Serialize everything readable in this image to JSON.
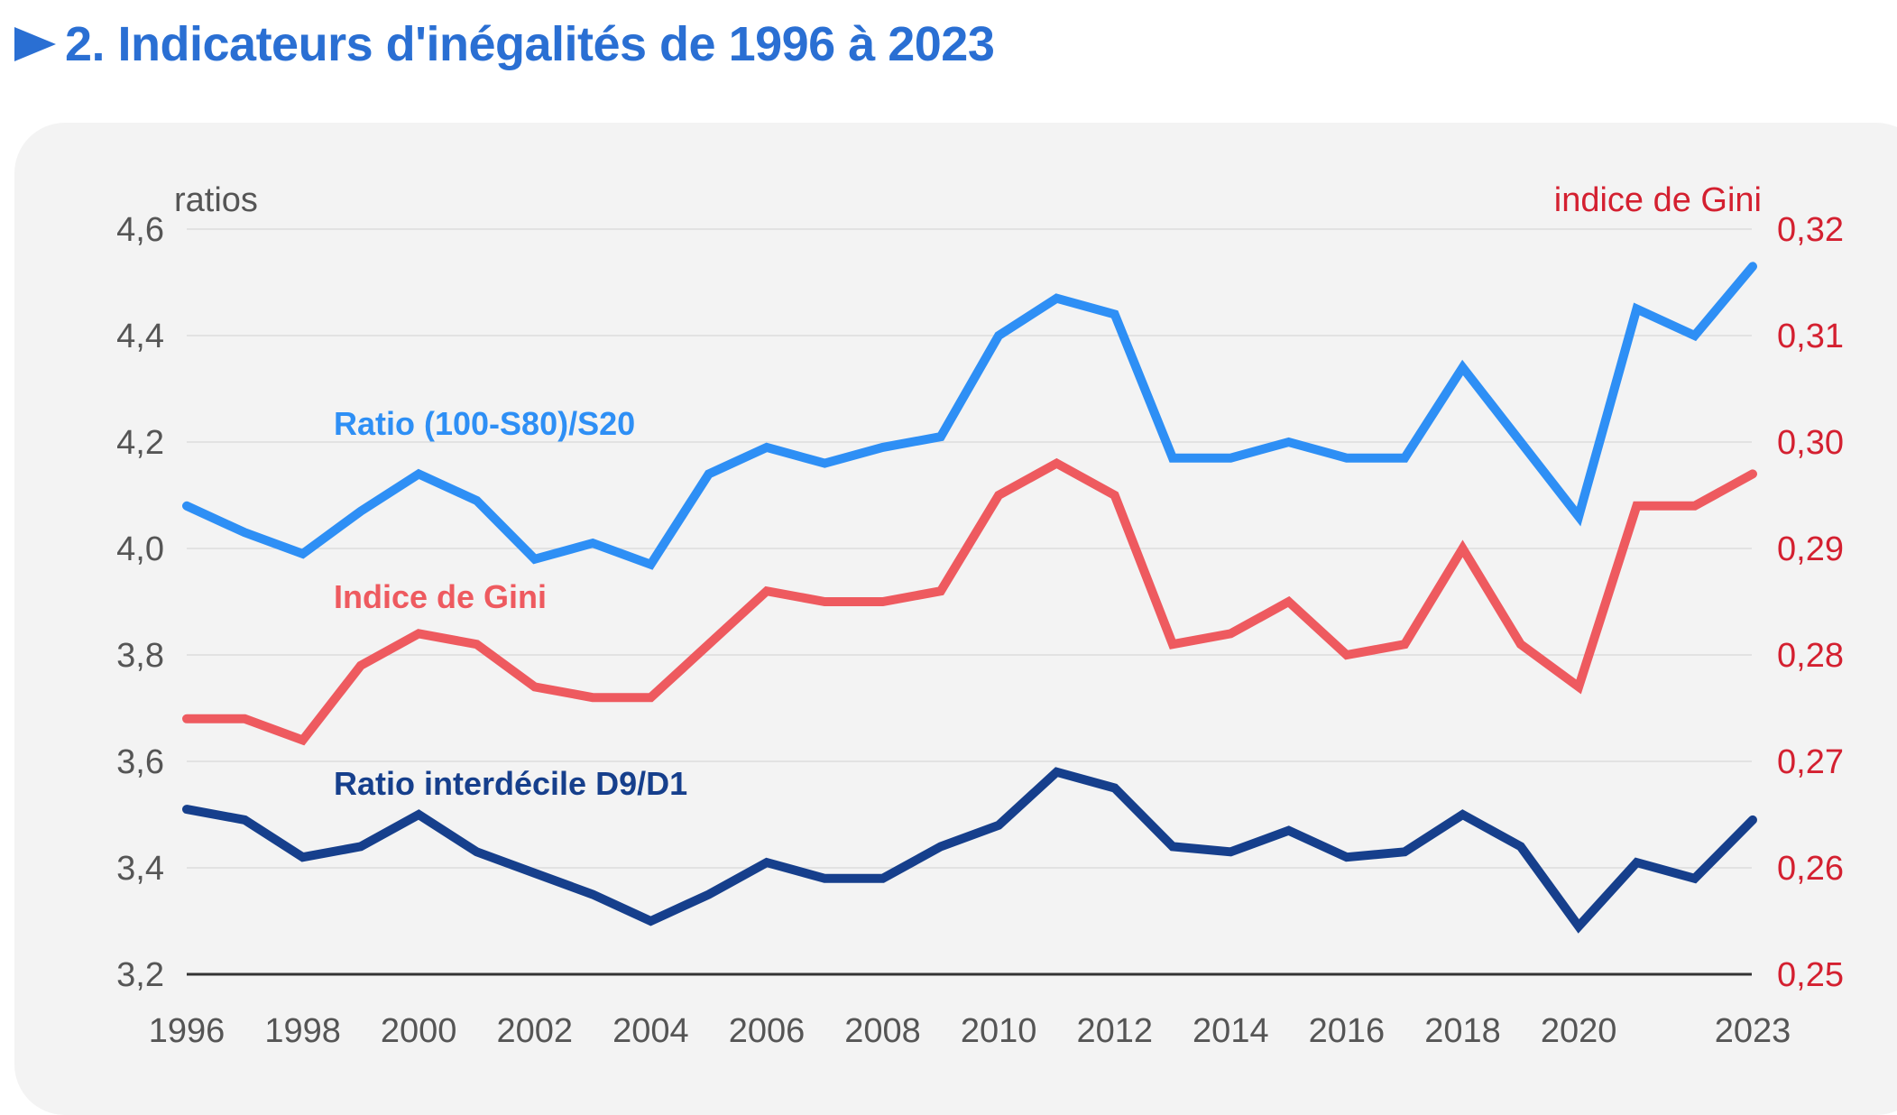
{
  "title": "2. Indicateurs d'inégalités de 1996 à 2023",
  "colors": {
    "title": "#2a6fd3",
    "ratio_s80s20": "#2e8ff5",
    "gini": "#ee5a5f",
    "d9d1": "#163f8c",
    "left_axis_text": "#555555",
    "right_axis_text": "#d42030"
  },
  "chart_data": {
    "type": "line",
    "left_axis_label": "ratios",
    "right_axis_label": "indice de Gini",
    "left_ylim": [
      3.2,
      4.6
    ],
    "right_ylim": [
      0.25,
      0.32
    ],
    "left_ticks": [
      "4,6",
      "4,4",
      "4,2",
      "4,0",
      "3,8",
      "3,6",
      "3,4",
      "3,2"
    ],
    "left_tick_values": [
      4.6,
      4.4,
      4.2,
      4.0,
      3.8,
      3.6,
      3.4,
      3.2
    ],
    "right_ticks": [
      "0,32",
      "0,31",
      "0,30",
      "0,29",
      "0,28",
      "0,27",
      "0,26",
      "0,25"
    ],
    "right_tick_values": [
      0.32,
      0.31,
      0.3,
      0.29,
      0.28,
      0.27,
      0.26,
      0.25
    ],
    "x_tick_labels": [
      "1996",
      "1998",
      "2000",
      "2002",
      "2004",
      "2006",
      "2008",
      "2010",
      "2012",
      "2014",
      "2016",
      "2018",
      "2020",
      "2023"
    ],
    "x_tick_values": [
      1996,
      1998,
      2000,
      2002,
      2004,
      2006,
      2008,
      2010,
      2012,
      2014,
      2016,
      2018,
      2020,
      2023
    ],
    "x": [
      1996,
      1997,
      1998,
      1999,
      2000,
      2001,
      2002,
      2003,
      2004,
      2005,
      2006,
      2007,
      2008,
      2009,
      2010,
      2011,
      2012,
      2013,
      2014,
      2015,
      2016,
      2017,
      2018,
      2019,
      2020,
      2021,
      2022,
      2023
    ],
    "grid": true,
    "series": [
      {
        "name": "Ratio (100-S80)/S20",
        "axis": "left",
        "values": [
          4.08,
          4.03,
          3.99,
          4.07,
          4.14,
          4.09,
          3.98,
          4.01,
          3.97,
          4.14,
          4.19,
          4.16,
          4.19,
          4.21,
          4.4,
          4.47,
          4.44,
          4.17,
          4.17,
          4.2,
          4.17,
          4.17,
          4.34,
          4.2,
          4.06,
          4.45,
          4.4,
          4.53
        ]
      },
      {
        "name": "Indice de Gini",
        "axis": "right",
        "values": [
          0.274,
          0.274,
          0.272,
          0.279,
          0.282,
          0.281,
          0.277,
          0.276,
          0.276,
          0.281,
          0.286,
          0.285,
          0.285,
          0.286,
          0.295,
          0.298,
          0.295,
          0.281,
          0.282,
          0.285,
          0.28,
          0.281,
          0.29,
          0.281,
          0.277,
          0.294,
          0.294,
          0.297
        ]
      },
      {
        "name": "Ratio interdécile D9/D1",
        "axis": "left",
        "values": [
          3.51,
          3.49,
          3.42,
          3.44,
          3.5,
          3.43,
          3.39,
          3.35,
          3.3,
          3.35,
          3.41,
          3.38,
          3.38,
          3.44,
          3.48,
          3.58,
          3.55,
          3.44,
          3.43,
          3.47,
          3.42,
          3.43,
          3.5,
          3.44,
          3.29,
          3.41,
          3.38,
          3.49
        ]
      }
    ]
  }
}
